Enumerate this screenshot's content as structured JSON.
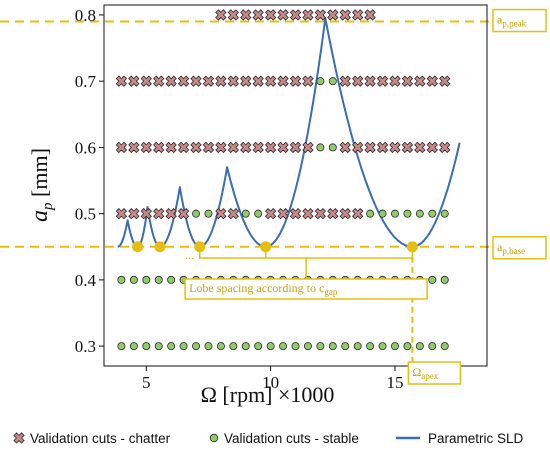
{
  "chart_data": {
    "type": "scatter",
    "xlabel": "Ω [rpm] ×1000",
    "ylabel_symbol": "a",
    "ylabel_sub": "p",
    "ylabel_unit": "[mm]",
    "xlim": [
      3.3,
      18.7
    ],
    "ylim": [
      0.27,
      0.815
    ],
    "xticks": [
      5,
      10,
      15
    ],
    "yticks": [
      0.3,
      0.4,
      0.5,
      0.6,
      0.7,
      0.8
    ],
    "grid": false,
    "legend_position": "bottom",
    "series": [
      {
        "name": "Validation cuts - chatter",
        "marker": "x-filled",
        "points": [
          {
            "ap": 0.8,
            "omega": [
              8.0,
              8.5,
              9.0,
              9.5,
              10.0,
              10.5,
              11.0,
              11.5,
              12.0,
              12.5,
              13.0,
              13.5,
              14.0
            ]
          },
          {
            "ap": 0.7,
            "omega": [
              4.0,
              4.5,
              5.0,
              5.5,
              6.0,
              6.5,
              7.0,
              7.5,
              8.0,
              8.5,
              9.0,
              9.5,
              10.0,
              10.5,
              11.0,
              11.5,
              13.0,
              13.5,
              14.0,
              14.5,
              15.0,
              15.5,
              16.0,
              16.5,
              17.0
            ]
          },
          {
            "ap": 0.6,
            "omega": [
              4.0,
              4.5,
              5.0,
              5.5,
              6.0,
              6.5,
              7.0,
              7.5,
              8.0,
              8.5,
              9.0,
              9.5,
              10.0,
              10.5,
              11.0,
              11.5,
              13.0,
              13.5,
              14.0,
              14.5,
              15.0,
              15.5,
              16.0,
              16.5,
              17.0
            ]
          },
          {
            "ap": 0.5,
            "omega": [
              4.0,
              4.5,
              5.0,
              5.5,
              6.0,
              6.5,
              8.0,
              8.5,
              10.0,
              10.5,
              11.0,
              11.5,
              12.0,
              12.5,
              13.0,
              13.5
            ]
          }
        ]
      },
      {
        "name": "Validation cuts - stable",
        "marker": "circle",
        "points": [
          {
            "ap": 0.7,
            "omega": [
              12.0,
              12.5
            ]
          },
          {
            "ap": 0.6,
            "omega": [
              12.0,
              12.5
            ]
          },
          {
            "ap": 0.5,
            "omega": [
              7.0,
              7.5,
              9.0,
              9.5,
              14.0,
              14.5,
              15.0,
              15.5,
              16.0,
              16.5,
              17.0
            ]
          },
          {
            "ap": 0.4,
            "omega": [
              4.0,
              4.5,
              5.0,
              5.5,
              6.0,
              6.5,
              7.0,
              7.5,
              8.0,
              8.5,
              9.0,
              9.5,
              10.0,
              10.5,
              11.0,
              11.5,
              12.0,
              12.5,
              13.0,
              13.5,
              14.0,
              14.5,
              15.0,
              15.5,
              16.0,
              16.5,
              17.0
            ]
          },
          {
            "ap": 0.3,
            "omega": [
              4.0,
              4.5,
              5.0,
              5.5,
              6.0,
              6.5,
              7.0,
              7.5,
              8.0,
              8.5,
              9.0,
              9.5,
              10.0,
              10.5,
              11.0,
              11.5,
              12.0,
              12.5,
              13.0,
              13.5,
              14.0,
              14.5,
              15.0,
              15.5,
              16.0,
              16.5,
              17.0
            ]
          }
        ]
      },
      {
        "name": "Parametric SLD",
        "type": "line",
        "lobe_minima": [
          [
            3.85,
            0.45
          ],
          [
            4.65,
            0.45
          ],
          [
            5.55,
            0.45
          ],
          [
            7.15,
            0.45
          ],
          [
            9.8,
            0.45
          ],
          [
            15.7,
            0.45
          ]
        ],
        "lobe_peaks": [
          [
            4.25,
            0.49
          ],
          [
            5.05,
            0.51
          ],
          [
            6.35,
            0.54
          ],
          [
            8.25,
            0.57
          ],
          [
            12.2,
            0.795
          ]
        ],
        "end_point": [
          17.6,
          0.607
        ]
      }
    ],
    "annotations": {
      "ap_peak": {
        "label_main": "a",
        "label_sub": "p,peak",
        "y": 0.79
      },
      "ap_base": {
        "label_main": "a",
        "label_sub": "p,base",
        "y": 0.45
      },
      "omega_apex": {
        "label_main": "Ω",
        "label_sub": "apex",
        "x": 15.7
      },
      "lobe_spacing": {
        "label_main": "Lobe spacing according to c",
        "label_sub": "gap"
      },
      "ellipsis": "...",
      "highlighted_minima_x": [
        4.65,
        5.55,
        7.15,
        9.8,
        15.7
      ]
    },
    "colors": {
      "chatter": "#c98989",
      "stable": "#8fcc66",
      "sld": "#3a6cb8",
      "annotation": "#e6bf0e",
      "annotation_text": "#c8a200"
    }
  }
}
